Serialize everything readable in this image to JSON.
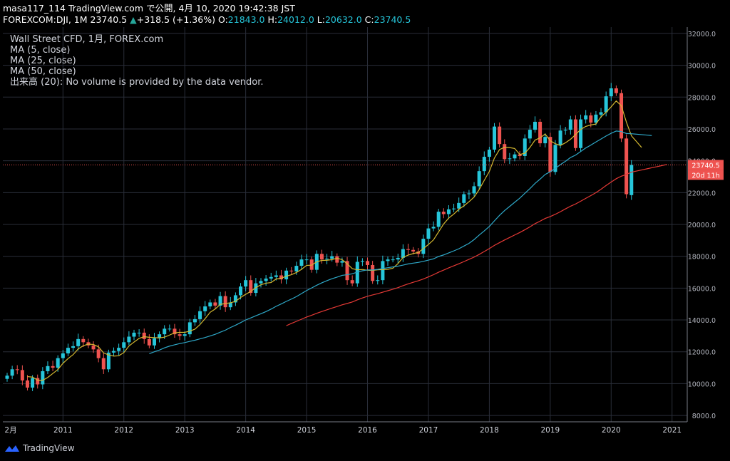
{
  "header": {
    "line1": "masa117_114 TradingView.com で公開, 4月 10, 2020 19:42:38 JST",
    "symbol": "FOREXCOM:DJI, 1M 23740.5",
    "change": "+318.5 (+1.36%)",
    "o_label": "O:",
    "o": "21843.0",
    "h_label": "H:",
    "h": "24012.0",
    "l_label": "L:",
    "l": "20632.0",
    "c_label": "C:",
    "c": "23740.5"
  },
  "legend": {
    "title": "Wall Street CFD, 1月, FOREX.com",
    "ma5": "MA (5, close)",
    "ma25": "MA (25, close)",
    "ma50": "MA (50, close)",
    "volume": "出来高 (20): No volume is provided by the data vendor."
  },
  "price_label": "23740.5",
  "countdown_label": "20d 11h",
  "footer": {
    "brand": "TradingView"
  },
  "colors": {
    "up": "#26c6da",
    "down": "#ef5350",
    "ma5": "#d4b830",
    "ma25": "#2ea8c8",
    "ma50": "#e53935",
    "grid": "#2a2e39"
  },
  "chart_data": {
    "type": "candlestick",
    "ylim": [
      7600,
      32400
    ],
    "y_ticks": [
      "32000.0",
      "30000.0",
      "28000.0",
      "26000.0",
      "24000.0",
      "22000.0",
      "20000.0",
      "18000.0",
      "16000.0",
      "14000.0",
      "12000.0",
      "10000.0",
      "8000.0"
    ],
    "x_labels": [
      "2月",
      "2011",
      "2012",
      "2013",
      "2014",
      "2015",
      "2016",
      "2017",
      "2018",
      "2019",
      "2020",
      "2021"
    ],
    "start": "2010-02",
    "candles_oc": [
      [
        10300,
        10500
      ],
      [
        10500,
        10900
      ],
      [
        10900,
        10850
      ],
      [
        10850,
        10200
      ],
      [
        10200,
        9750
      ],
      [
        9750,
        10350
      ],
      [
        10350,
        9950
      ],
      [
        9950,
        10780
      ],
      [
        10780,
        11100
      ],
      [
        11100,
        11000
      ],
      [
        11000,
        11600
      ],
      [
        11600,
        11900
      ],
      [
        11900,
        12250
      ],
      [
        12250,
        12350
      ],
      [
        12350,
        12800
      ],
      [
        12800,
        12600
      ],
      [
        12600,
        12400
      ],
      [
        12400,
        12150
      ],
      [
        12150,
        11600
      ],
      [
        11600,
        10900
      ],
      [
        10900,
        11950
      ],
      [
        11950,
        12050
      ],
      [
        12050,
        12250
      ],
      [
        12250,
        12600
      ],
      [
        12600,
        12950
      ],
      [
        12950,
        13200
      ],
      [
        13200,
        13200
      ],
      [
        13200,
        12800
      ],
      [
        12800,
        12400
      ],
      [
        12400,
        12850
      ],
      [
        12850,
        13100
      ],
      [
        13100,
        13450
      ],
      [
        13450,
        13450
      ],
      [
        13450,
        13100
      ],
      [
        13100,
        13000
      ],
      [
        13000,
        13100
      ],
      [
        13100,
        13850
      ],
      [
        13850,
        14050
      ],
      [
        14050,
        14550
      ],
      [
        14550,
        14850
      ],
      [
        14850,
        15100
      ],
      [
        15100,
        14900
      ],
      [
        14900,
        15500
      ],
      [
        15500,
        14800
      ],
      [
        14800,
        15100
      ],
      [
        15100,
        15550
      ],
      [
        15550,
        16100
      ],
      [
        16100,
        16500
      ],
      [
        16500,
        15700
      ],
      [
        15700,
        16300
      ],
      [
        16300,
        16450
      ],
      [
        16450,
        16600
      ],
      [
        16600,
        16700
      ],
      [
        16700,
        16800
      ],
      [
        16800,
        16550
      ],
      [
        16550,
        17100
      ],
      [
        17100,
        17050
      ],
      [
        17050,
        17400
      ],
      [
        17400,
        17800
      ],
      [
        17800,
        17800
      ],
      [
        17800,
        17150
      ],
      [
        17150,
        18150
      ],
      [
        18150,
        17800
      ],
      [
        17800,
        17850
      ],
      [
        17850,
        18000
      ],
      [
        18000,
        17600
      ],
      [
        17600,
        17700
      ],
      [
        17700,
        16500
      ],
      [
        16500,
        16300
      ],
      [
        16300,
        17650
      ],
      [
        17650,
        17700
      ],
      [
        17700,
        17450
      ],
      [
        17450,
        16450
      ],
      [
        16450,
        16500
      ],
      [
        16500,
        17700
      ],
      [
        17700,
        17800
      ],
      [
        17800,
        17800
      ],
      [
        17800,
        17900
      ],
      [
        17900,
        18450
      ],
      [
        18450,
        18400
      ],
      [
        18400,
        18300
      ],
      [
        18300,
        18150
      ],
      [
        18150,
        19100
      ],
      [
        19100,
        19750
      ],
      [
        19750,
        19850
      ],
      [
        19850,
        20800
      ],
      [
        20800,
        20650
      ],
      [
        20650,
        20950
      ],
      [
        20950,
        21000
      ],
      [
        21000,
        21350
      ],
      [
        21350,
        21900
      ],
      [
        21900,
        21950
      ],
      [
        21950,
        22400
      ],
      [
        22400,
        23350
      ],
      [
        23350,
        24250
      ],
      [
        24250,
        24700
      ],
      [
        24700,
        26150
      ],
      [
        26150,
        25050
      ],
      [
        25050,
        24100
      ],
      [
        24100,
        24150
      ],
      [
        24150,
        24400
      ],
      [
        24400,
        24300
      ],
      [
        24300,
        25400
      ],
      [
        25400,
        25950
      ],
      [
        25950,
        26450
      ],
      [
        26450,
        25100
      ],
      [
        25100,
        25500
      ],
      [
        25500,
        23300
      ],
      [
        23300,
        25000
      ],
      [
        25000,
        25900
      ],
      [
        25900,
        25950
      ],
      [
        25950,
        26600
      ],
      [
        26600,
        24800
      ],
      [
        24800,
        26600
      ],
      [
        26600,
        26850
      ],
      [
        26850,
        26400
      ],
      [
        26400,
        26900
      ],
      [
        26900,
        27050
      ],
      [
        27050,
        28050
      ],
      [
        28050,
        28550
      ],
      [
        28550,
        28250
      ],
      [
        28250,
        25400
      ],
      [
        25400,
        21900
      ],
      [
        21843,
        23740.5
      ]
    ],
    "ma5_end": "2020-07",
    "ma25_start": "2012-06",
    "ma25_end": "2020-09",
    "ma50_start": "2014-09",
    "ma50_end": "2020-12"
  }
}
